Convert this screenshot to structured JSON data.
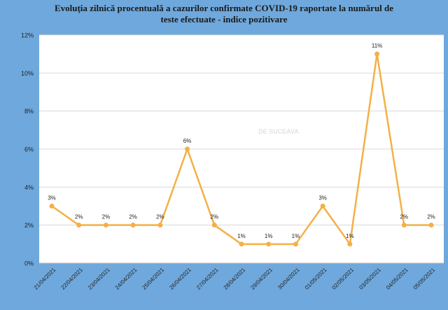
{
  "chart_data": {
    "type": "line",
    "title_lines": [
      "Evoluția zilnică procentuală a cazurilor confirmate COVID-19 raportate la numărul de",
      "teste efectuate - indice pozitivare"
    ],
    "categories": [
      "21/04/2021",
      "22/04/2021",
      "23/04/2021",
      "24/04/2021",
      "25/04/2021",
      "26/04/2021",
      "27/04/2021",
      "28/04/2021",
      "29/04/2021",
      "30/04/2021",
      "01/05/2021",
      "02/05/2021",
      "03/05/2021",
      "04/05/2021",
      "05/05/2021"
    ],
    "values": [
      3,
      2,
      2,
      2,
      2,
      6,
      2,
      1,
      1,
      1,
      3,
      1,
      11,
      2,
      2
    ],
    "data_labels": [
      "3%",
      "2%",
      "2%",
      "2%",
      "2%",
      "6%",
      "2%",
      "1%",
      "1%",
      "1%",
      "3%",
      "1%",
      "11%",
      "2%",
      "2%"
    ],
    "y_ticks": [
      0,
      2,
      4,
      6,
      8,
      10,
      12
    ],
    "y_tick_labels": [
      "0%",
      "2%",
      "4%",
      "6%",
      "8%",
      "10%",
      "12%"
    ],
    "ylim": [
      0,
      12
    ],
    "grid": true,
    "watermark": "DE SUCEAVA",
    "colors": {
      "line": "#f4b046",
      "grid": "#d9d9d9",
      "plot_bg": "#ffffff",
      "frame_bg": "#6fa8dc"
    }
  }
}
